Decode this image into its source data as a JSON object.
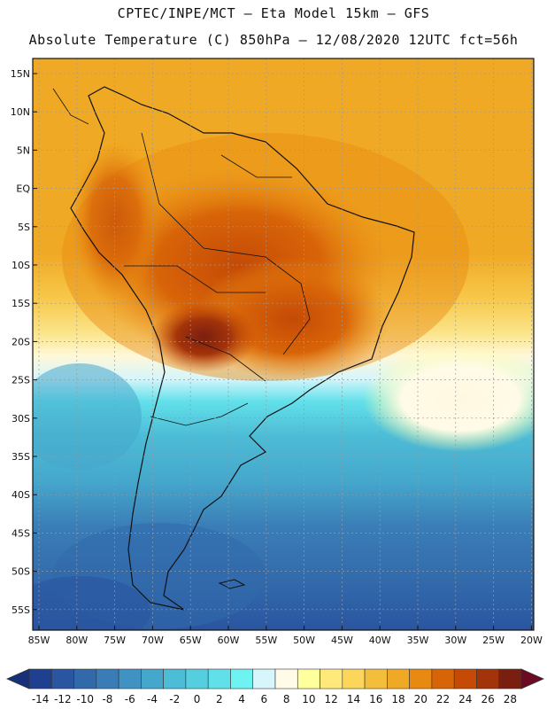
{
  "header": {
    "line1": "CPTEC/INPE/MCT –  Eta Model 15km – GFS",
    "line2": "Absolute Temperature (C) 850hPa – 12/08/2020 12UTC fct=56h"
  },
  "map": {
    "lat_labels": [
      "15N",
      "10N",
      "5N",
      "EQ",
      "5S",
      "10S",
      "15S",
      "20S",
      "25S",
      "30S",
      "35S",
      "40S",
      "45S",
      "50S",
      "55S"
    ],
    "lon_labels": [
      "85W",
      "80W",
      "75W",
      "70W",
      "65W",
      "60W",
      "55W",
      "50W",
      "45W",
      "40W",
      "35W",
      "30W",
      "25W",
      "20W"
    ]
  },
  "colorbar": {
    "labels": [
      "-14",
      "-12",
      "-10",
      "-8",
      "-6",
      "-4",
      "-2",
      "0",
      "2",
      "4",
      "6",
      "8",
      "10",
      "12",
      "14",
      "16",
      "18",
      "20",
      "22",
      "24",
      "26",
      "28"
    ],
    "colors": [
      "#1f3f8f",
      "#2a55a0",
      "#3269ab",
      "#3a7db6",
      "#3f92c2",
      "#45a7cc",
      "#4dbcd6",
      "#55cfe0",
      "#62e0ea",
      "#6ef2f2",
      "#d6f6fb",
      "#fffbe8",
      "#ffff9e",
      "#ffe97a",
      "#fbd65a",
      "#f3be3c",
      "#f0a924",
      "#e88a12",
      "#d86408",
      "#c44a06",
      "#a3330a",
      "#7a1f10"
    ],
    "under_color": "#16307a",
    "over_color": "#6b0a22"
  }
}
